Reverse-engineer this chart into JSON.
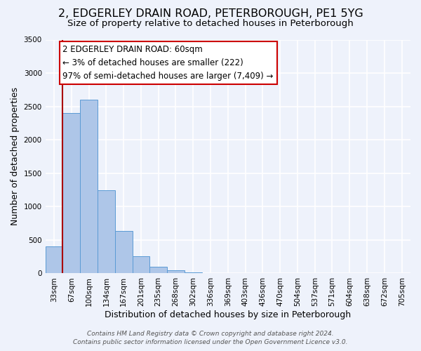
{
  "title": "2, EDGERLEY DRAIN ROAD, PETERBOROUGH, PE1 5YG",
  "subtitle": "Size of property relative to detached houses in Peterborough",
  "xlabel": "Distribution of detached houses by size in Peterborough",
  "ylabel": "Number of detached properties",
  "bar_labels": [
    "33sqm",
    "67sqm",
    "100sqm",
    "134sqm",
    "167sqm",
    "201sqm",
    "235sqm",
    "268sqm",
    "302sqm",
    "336sqm",
    "369sqm",
    "403sqm",
    "436sqm",
    "470sqm",
    "504sqm",
    "537sqm",
    "571sqm",
    "604sqm",
    "638sqm",
    "672sqm",
    "705sqm"
  ],
  "bar_values": [
    400,
    2400,
    2600,
    1250,
    640,
    260,
    100,
    50,
    20,
    5,
    2,
    0,
    0,
    0,
    0,
    0,
    0,
    0,
    0,
    0,
    0
  ],
  "bar_color": "#aec6e8",
  "bar_edge_color": "#5b9bd5",
  "background_color": "#eef2fb",
  "grid_color": "#ffffff",
  "ylim": [
    0,
    3500
  ],
  "yticks": [
    0,
    500,
    1000,
    1500,
    2000,
    2500,
    3000,
    3500
  ],
  "marker_color": "#aa0000",
  "annotation_title": "2 EDGERLEY DRAIN ROAD: 60sqm",
  "annotation_line1": "← 3% of detached houses are smaller (222)",
  "annotation_line2": "97% of semi-detached houses are larger (7,409) →",
  "annotation_box_color": "#ffffff",
  "annotation_border_color": "#cc0000",
  "footer1": "Contains HM Land Registry data © Crown copyright and database right 2024.",
  "footer2": "Contains public sector information licensed under the Open Government Licence v3.0.",
  "title_fontsize": 11.5,
  "subtitle_fontsize": 9.5,
  "xlabel_fontsize": 9,
  "ylabel_fontsize": 9,
  "tick_fontsize": 7.5,
  "annotation_fontsize": 8.5,
  "footer_fontsize": 6.5
}
